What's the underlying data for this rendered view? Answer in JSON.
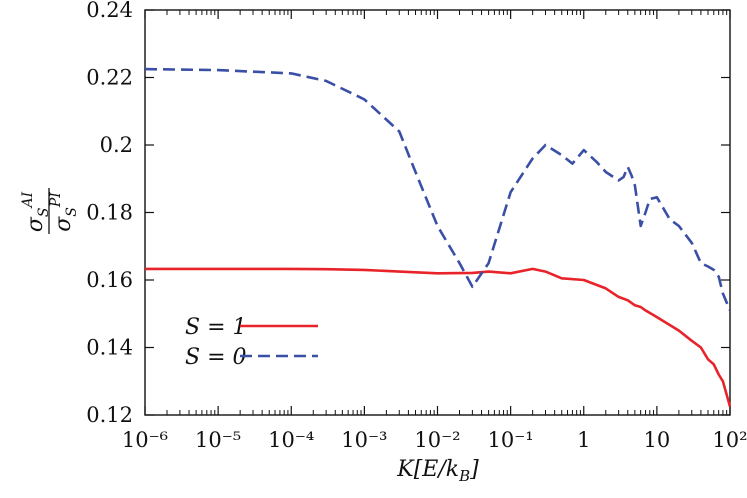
{
  "chart_data": {
    "type": "line",
    "xscale": "log",
    "xlabel": "K[E/k_B]",
    "ylabel": "σ_S^AI / σ_S^PI",
    "xlim": [
      1e-06,
      100
    ],
    "ylim": [
      0.12,
      0.24
    ],
    "x_ticks": [
      1e-06,
      1e-05,
      0.0001,
      0.001,
      0.01,
      0.1,
      1,
      10,
      100
    ],
    "x_tick_labels": [
      "10⁻⁶",
      "10⁻⁵",
      "10⁻⁴",
      "10⁻³",
      "10⁻²",
      "10⁻¹",
      "1",
      "10",
      "10²"
    ],
    "y_ticks": [
      0.12,
      0.14,
      0.16,
      0.18,
      0.2,
      0.22,
      0.24
    ],
    "y_tick_labels": [
      "0.12",
      "0.14",
      "0.16",
      "0.18",
      "0.2",
      "0.22",
      "0.24"
    ],
    "grid": false,
    "legend_position": "bottom-left",
    "series": [
      {
        "name": "S = 1",
        "color": "#e8242a",
        "dash": "solid",
        "x": [
          1e-06,
          1e-05,
          0.0001,
          0.0003,
          0.001,
          0.003,
          0.01,
          0.03,
          0.05,
          0.1,
          0.2,
          0.3,
          0.5,
          1,
          2,
          3,
          4,
          5,
          6,
          7,
          10,
          20,
          30,
          40,
          50,
          60,
          70,
          80,
          90,
          100
        ],
        "y": [
          0.1633,
          0.1633,
          0.1633,
          0.1632,
          0.163,
          0.1625,
          0.162,
          0.1621,
          0.1625,
          0.162,
          0.1633,
          0.1625,
          0.1605,
          0.16,
          0.1575,
          0.155,
          0.154,
          0.1525,
          0.152,
          0.151,
          0.149,
          0.145,
          0.142,
          0.14,
          0.1365,
          0.135,
          0.132,
          0.13,
          0.126,
          0.1225
        ]
      },
      {
        "name": "S = 0",
        "color": "#3a4fa6",
        "dash": "dashed",
        "x": [
          1e-06,
          1e-05,
          0.0001,
          0.0003,
          0.001,
          0.003,
          0.005,
          0.01,
          0.02,
          0.03,
          0.05,
          0.1,
          0.2,
          0.3,
          0.5,
          0.7,
          1,
          1.5,
          2,
          3,
          3.5,
          4,
          4.5,
          5,
          6,
          7,
          8,
          10,
          15,
          20,
          30,
          40,
          50,
          60,
          70,
          80,
          100
        ],
        "y": [
          0.2225,
          0.2222,
          0.2212,
          0.219,
          0.2135,
          0.204,
          0.192,
          0.176,
          0.165,
          0.158,
          0.165,
          0.186,
          0.196,
          0.2,
          0.197,
          0.1945,
          0.1985,
          0.195,
          0.192,
          0.1895,
          0.1905,
          0.1935,
          0.191,
          0.188,
          0.176,
          0.18,
          0.184,
          0.1845,
          0.178,
          0.176,
          0.171,
          0.165,
          0.164,
          0.163,
          0.161,
          0.156,
          0.151
        ]
      }
    ]
  }
}
